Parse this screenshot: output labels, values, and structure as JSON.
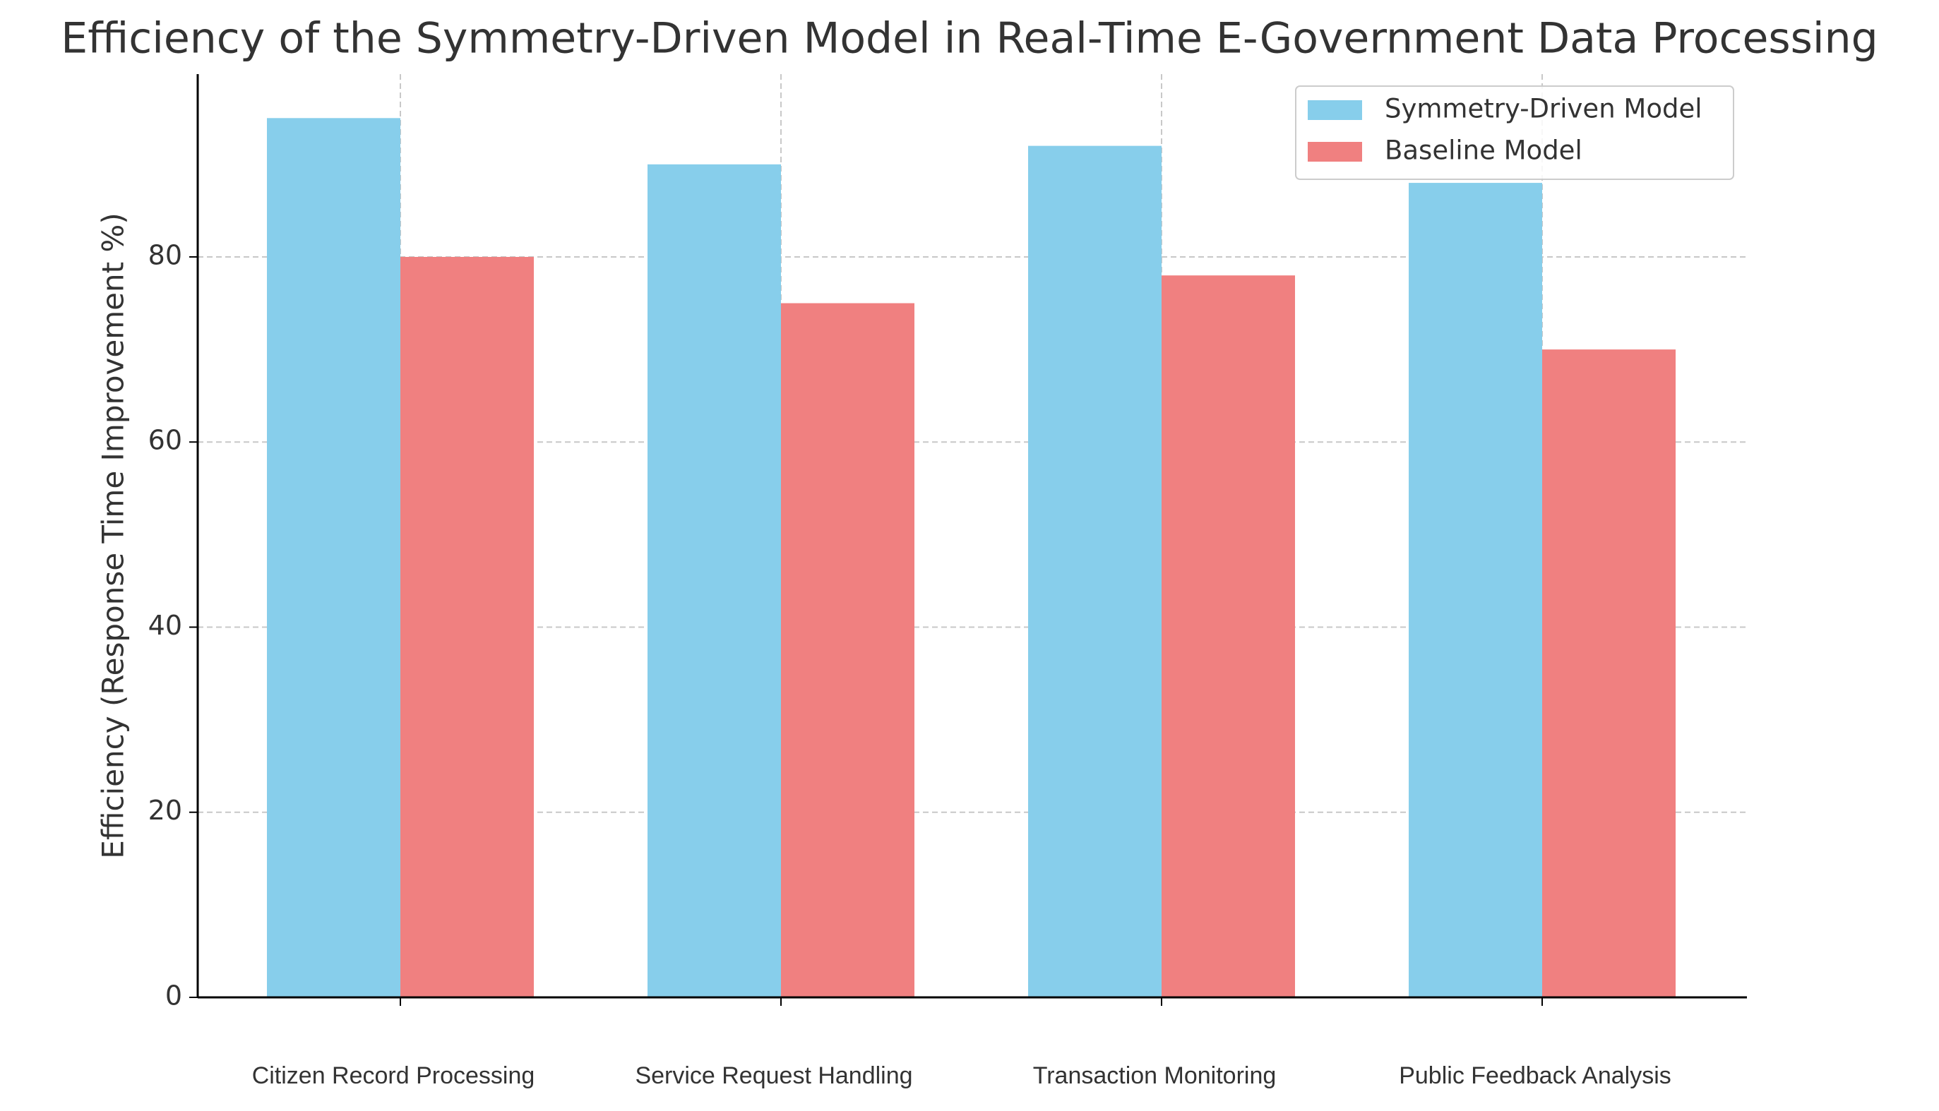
{
  "chart_data": {
    "type": "bar",
    "title": "Efficiency of the Symmetry-Driven Model in Real-Time E-Government Data Processing",
    "y_label": "Efficiency (Response Time Improvement %)",
    "categories": [
      "Citizen Record Processing",
      "Service Request Handling",
      "Transaction Monitoring",
      "Public Feedback Analysis"
    ],
    "series": [
      {
        "name": "Symmetry-Driven Model",
        "color": "#87ceeb",
        "values": [
          95,
          90,
          92,
          88
        ]
      },
      {
        "name": "Baseline Model",
        "color": "#f08080",
        "values": [
          80,
          75,
          78,
          70
        ]
      }
    ],
    "ylim": [
      0,
      99.75
    ],
    "yticks": [
      0,
      20,
      40,
      60,
      80
    ],
    "grid": true,
    "legend": "upper right"
  }
}
